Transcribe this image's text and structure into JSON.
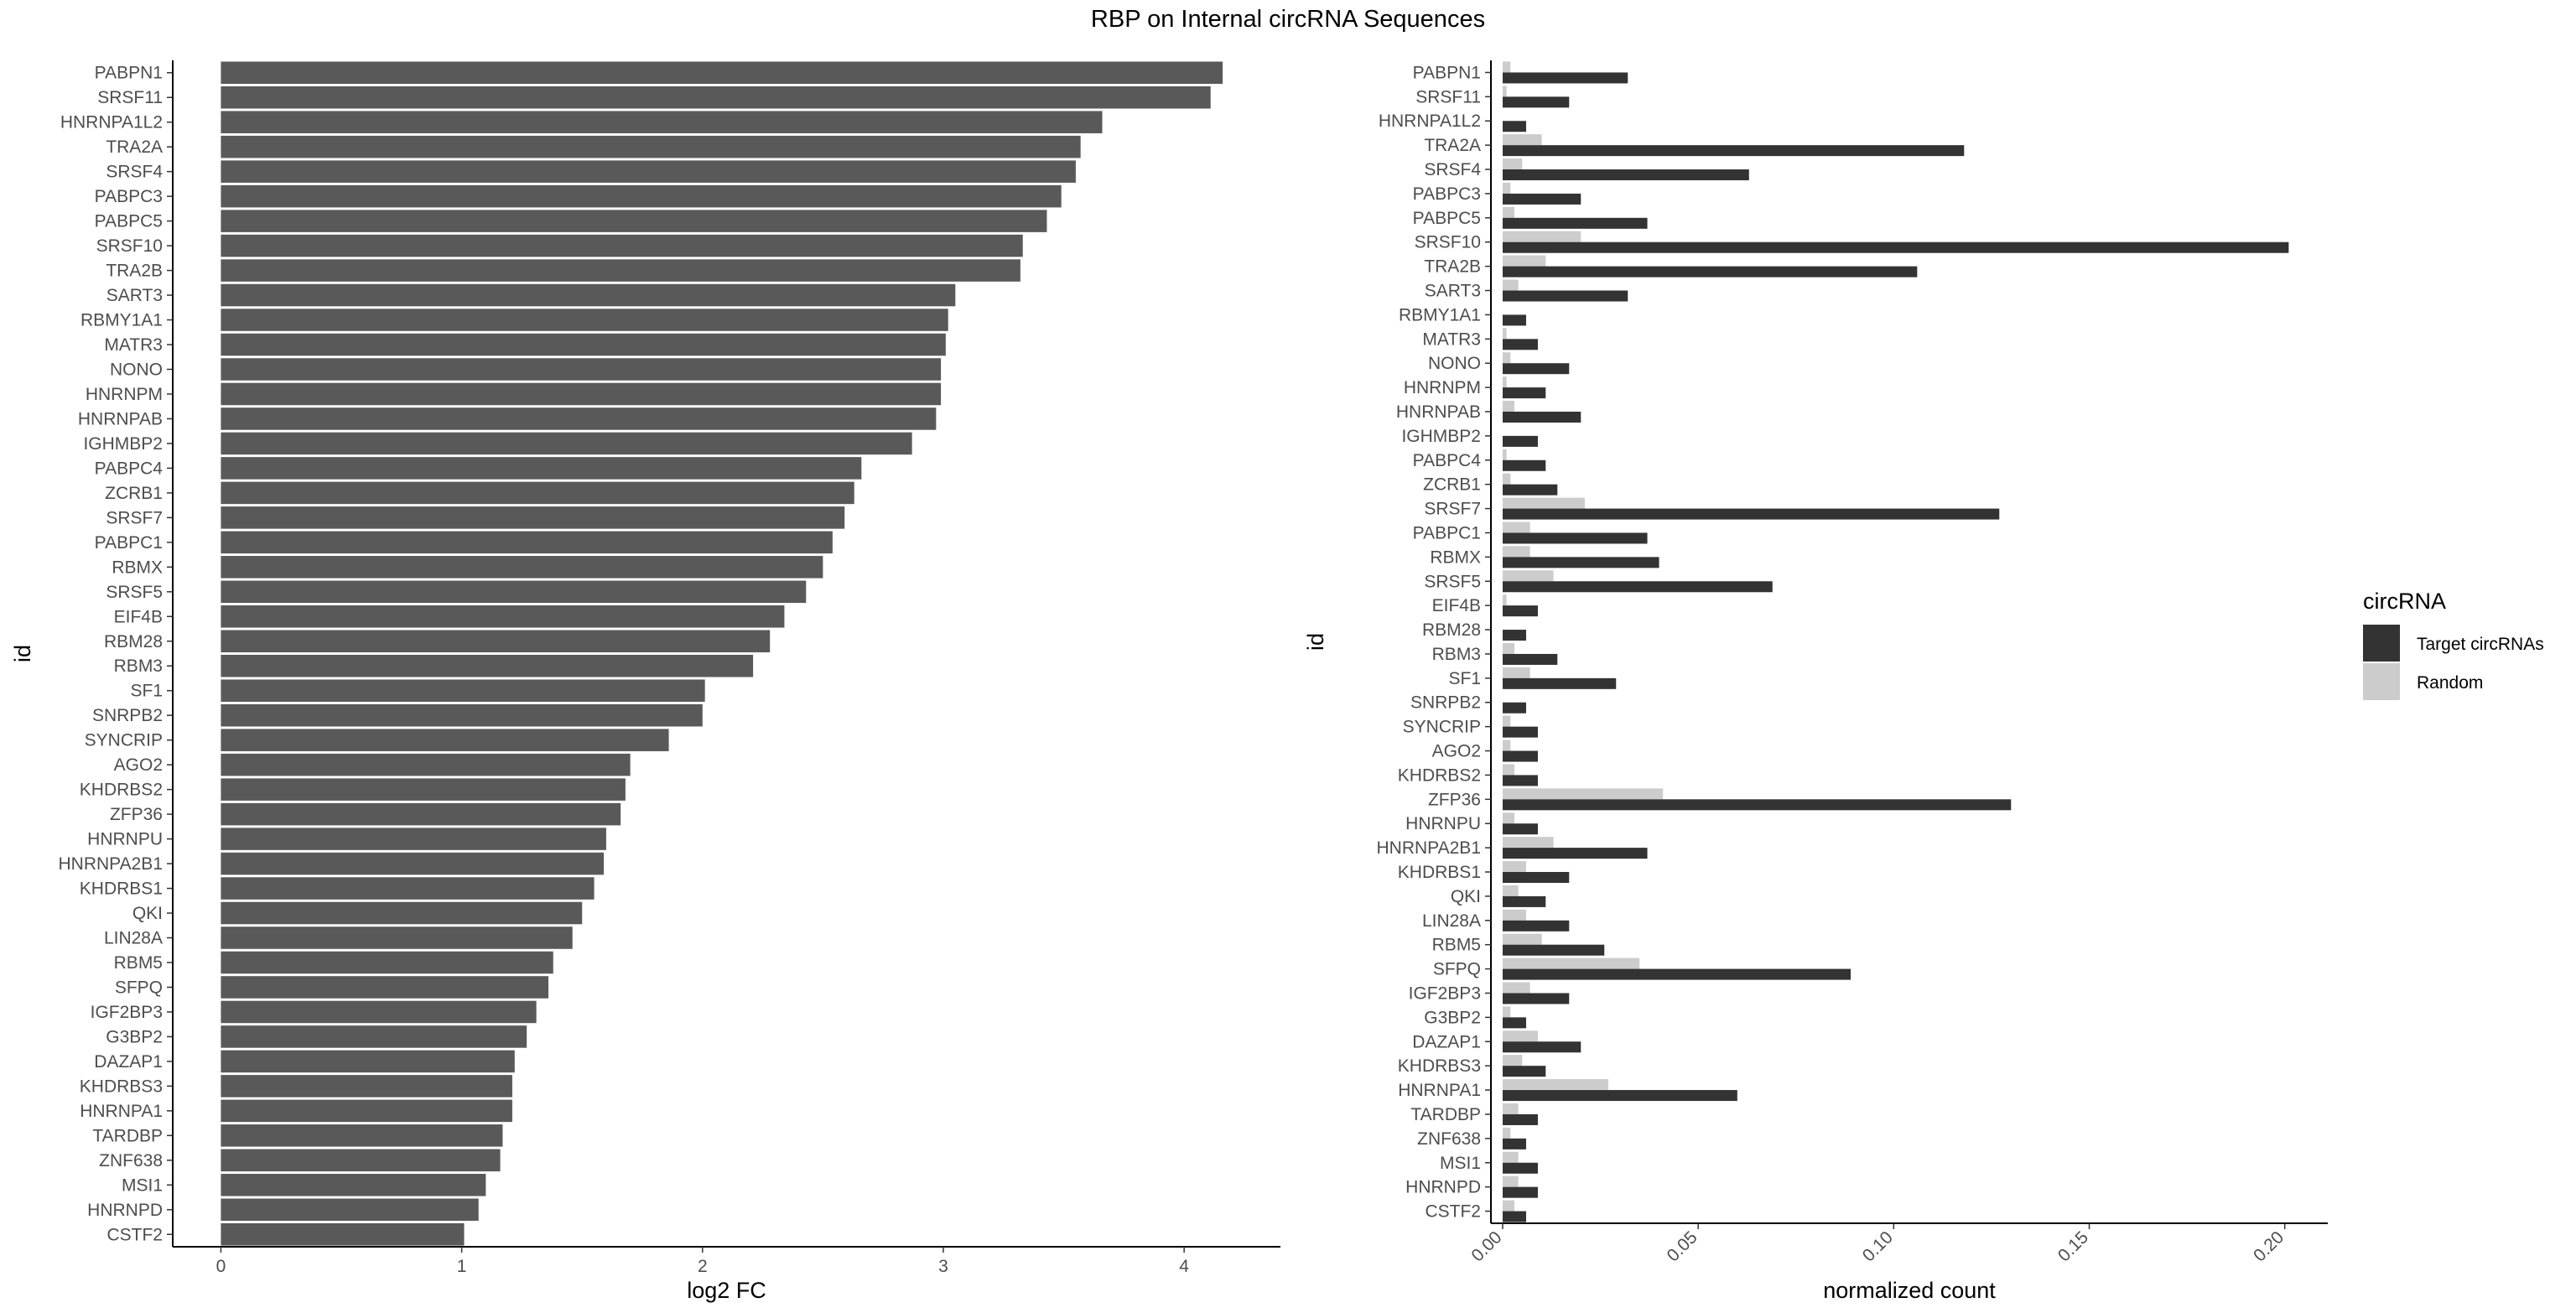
{
  "title": "RBP on Internal circRNA Sequences",
  "colors": {
    "left_bar": "#595959",
    "target": "#333333",
    "random": "#cccccc",
    "axis": "#000000"
  },
  "chart_data": [
    {
      "type": "bar",
      "orientation": "horizontal",
      "xlabel": "log2 FC",
      "ylabel": "id",
      "xlim": [
        -0.2,
        4.4
      ],
      "xticks": [
        0,
        1,
        2,
        3,
        4
      ],
      "xtick_labels": [
        "0",
        "1",
        "2",
        "3",
        "4"
      ],
      "grid": false,
      "categories": [
        "PABPN1",
        "SRSF11",
        "HNRNPA1L2",
        "TRA2A",
        "SRSF4",
        "PABPC3",
        "PABPC5",
        "SRSF10",
        "TRA2B",
        "SART3",
        "RBMY1A1",
        "MATR3",
        "NONO",
        "HNRNPM",
        "HNRNPAB",
        "IGHMBP2",
        "PABPC4",
        "ZCRB1",
        "SRSF7",
        "PABPC1",
        "RBMX",
        "SRSF5",
        "EIF4B",
        "RBM28",
        "RBM3",
        "SF1",
        "SNRPB2",
        "SYNCRIP",
        "AGO2",
        "KHDRBS2",
        "ZFP36",
        "HNRNPU",
        "HNRNPA2B1",
        "KHDRBS1",
        "QKI",
        "LIN28A",
        "RBM5",
        "SFPQ",
        "IGF2BP3",
        "G3BP2",
        "DAZAP1",
        "KHDRBS3",
        "HNRNPA1",
        "TARDBP",
        "ZNF638",
        "MSI1",
        "HNRNPD",
        "CSTF2"
      ],
      "values": [
        4.16,
        4.11,
        3.66,
        3.57,
        3.55,
        3.49,
        3.43,
        3.33,
        3.32,
        3.05,
        3.02,
        3.01,
        2.99,
        2.99,
        2.97,
        2.87,
        2.66,
        2.63,
        2.59,
        2.54,
        2.5,
        2.43,
        2.34,
        2.28,
        2.21,
        2.01,
        2.0,
        1.86,
        1.7,
        1.68,
        1.66,
        1.6,
        1.59,
        1.55,
        1.5,
        1.46,
        1.38,
        1.36,
        1.31,
        1.27,
        1.22,
        1.21,
        1.21,
        1.17,
        1.16,
        1.1,
        1.07,
        1.01
      ]
    },
    {
      "type": "bar",
      "orientation": "horizontal",
      "grouped": true,
      "xlabel": "normalized count",
      "ylabel": "id",
      "xlim": [
        -0.003,
        0.211
      ],
      "xticks": [
        0,
        0.05,
        0.1,
        0.15,
        0.2
      ],
      "xtick_labels": [
        "0.00",
        "0.05",
        "0.10",
        "0.15",
        "0.20"
      ],
      "grid": false,
      "legend": {
        "title": "circRNA",
        "position": "right"
      },
      "categories": [
        "PABPN1",
        "SRSF11",
        "HNRNPA1L2",
        "TRA2A",
        "SRSF4",
        "PABPC3",
        "PABPC5",
        "SRSF10",
        "TRA2B",
        "SART3",
        "RBMY1A1",
        "MATR3",
        "NONO",
        "HNRNPM",
        "HNRNPAB",
        "IGHMBP2",
        "PABPC4",
        "ZCRB1",
        "SRSF7",
        "PABPC1",
        "RBMX",
        "SRSF5",
        "EIF4B",
        "RBM28",
        "RBM3",
        "SF1",
        "SNRPB2",
        "SYNCRIP",
        "AGO2",
        "KHDRBS2",
        "ZFP36",
        "HNRNPU",
        "HNRNPA2B1",
        "KHDRBS1",
        "QKI",
        "LIN28A",
        "RBM5",
        "SFPQ",
        "IGF2BP3",
        "G3BP2",
        "DAZAP1",
        "KHDRBS3",
        "HNRNPA1",
        "TARDBP",
        "ZNF638",
        "MSI1",
        "HNRNPD",
        "CSTF2"
      ],
      "series": [
        {
          "name": "Target circRNAs",
          "color": "#333333",
          "values": [
            0.032,
            0.017,
            0.006,
            0.118,
            0.063,
            0.02,
            0.037,
            0.201,
            0.106,
            0.032,
            0.006,
            0.009,
            0.017,
            0.011,
            0.02,
            0.009,
            0.011,
            0.014,
            0.127,
            0.037,
            0.04,
            0.069,
            0.009,
            0.006,
            0.014,
            0.029,
            0.006,
            0.009,
            0.009,
            0.009,
            0.13,
            0.009,
            0.037,
            0.017,
            0.011,
            0.017,
            0.026,
            0.089,
            0.017,
            0.006,
            0.02,
            0.011,
            0.06,
            0.009,
            0.006,
            0.009,
            0.009,
            0.006
          ]
        },
        {
          "name": "Random",
          "color": "#cccccc",
          "values": [
            0.002,
            0.001,
            0.0,
            0.01,
            0.005,
            0.002,
            0.003,
            0.02,
            0.011,
            0.004,
            0.0,
            0.001,
            0.002,
            0.001,
            0.003,
            0.0,
            0.001,
            0.002,
            0.021,
            0.007,
            0.007,
            0.013,
            0.001,
            0.0,
            0.003,
            0.007,
            0.0,
            0.002,
            0.002,
            0.003,
            0.041,
            0.003,
            0.013,
            0.006,
            0.004,
            0.006,
            0.01,
            0.035,
            0.007,
            0.002,
            0.009,
            0.005,
            0.027,
            0.004,
            0.002,
            0.004,
            0.004,
            0.003
          ]
        }
      ]
    }
  ]
}
